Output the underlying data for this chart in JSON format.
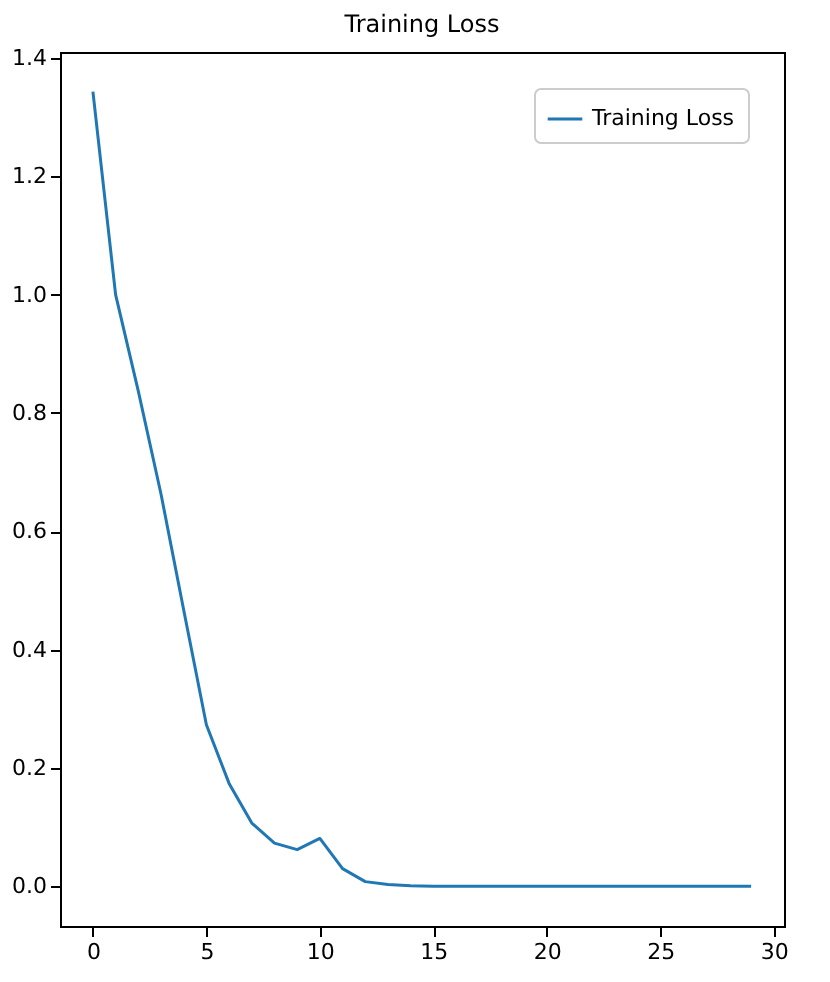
{
  "chart_data": {
    "type": "line",
    "title": "Training Loss",
    "x": [
      0,
      1,
      2,
      3,
      4,
      5,
      6,
      7,
      8,
      9,
      10,
      11,
      12,
      13,
      14,
      15,
      16,
      17,
      18,
      19,
      20,
      21,
      22,
      23,
      24,
      25,
      26,
      27,
      28,
      29
    ],
    "series": [
      {
        "name": "Training Loss",
        "color": "#1f77b4",
        "values": [
          1.343,
          1.0,
          0.837,
          0.663,
          0.467,
          0.273,
          0.174,
          0.107,
          0.073,
          0.062,
          0.081,
          0.03,
          0.008,
          0.003,
          0.001,
          0.0,
          0.0,
          0.0,
          0.0,
          0.0,
          0.0,
          0.0,
          0.0,
          0.0,
          0.0,
          0.0,
          0.0,
          0.0,
          0.0,
          0.0
        ]
      }
    ],
    "xlim": [
      -1.45,
      30.45
    ],
    "xticks": [
      0,
      5,
      10,
      15,
      20,
      25,
      30
    ],
    "ylim": [
      -0.067,
      1.41
    ],
    "yticks": [
      {
        "value": 0,
        "label": "0.0"
      },
      0.2,
      0.4,
      0.6,
      0.8,
      {
        "value": 1,
        "label": "1.0"
      },
      1.2,
      1.4
    ],
    "grid": false,
    "legend": "top right",
    "marker": "none",
    "line_style": "solid"
  }
}
